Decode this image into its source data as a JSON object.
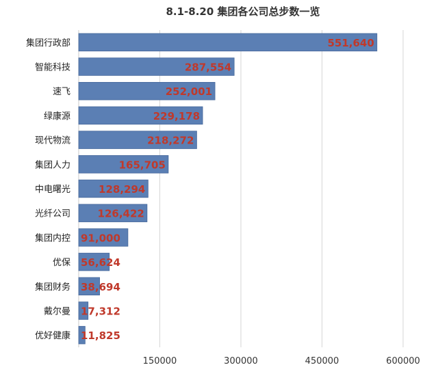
{
  "chart_data": {
    "type": "bar",
    "orientation": "horizontal",
    "title": "8.1-8.20 集团各公司总步数一览",
    "categories": [
      "集团行政部",
      "智能科技",
      "速飞",
      "绿康源",
      "现代物流",
      "集团人力",
      "中电曙光",
      "光纤公司",
      "集团内控",
      "优保",
      "集团财务",
      "戴尔曼",
      "优好健康"
    ],
    "values": [
      551640,
      287554,
      252001,
      229178,
      218272,
      165705,
      128294,
      126422,
      91000,
      56624,
      38694,
      17312,
      11825
    ],
    "value_labels": [
      "551,640",
      "287,554",
      "252,001",
      "229,178",
      "218,272",
      "165,705",
      "128,294",
      "126,422",
      "91,000",
      "56,624",
      "38,694",
      "17,312",
      "11,825"
    ],
    "xticks": [
      150000,
      300000,
      450000,
      600000
    ],
    "xtick_labels": [
      "150000",
      "300000",
      "450000",
      "600000"
    ],
    "xlim": [
      0,
      600000
    ],
    "grid": true,
    "bar_color": "#5b7fb4",
    "label_color": "#c0392b",
    "xlabel": "",
    "ylabel": ""
  }
}
